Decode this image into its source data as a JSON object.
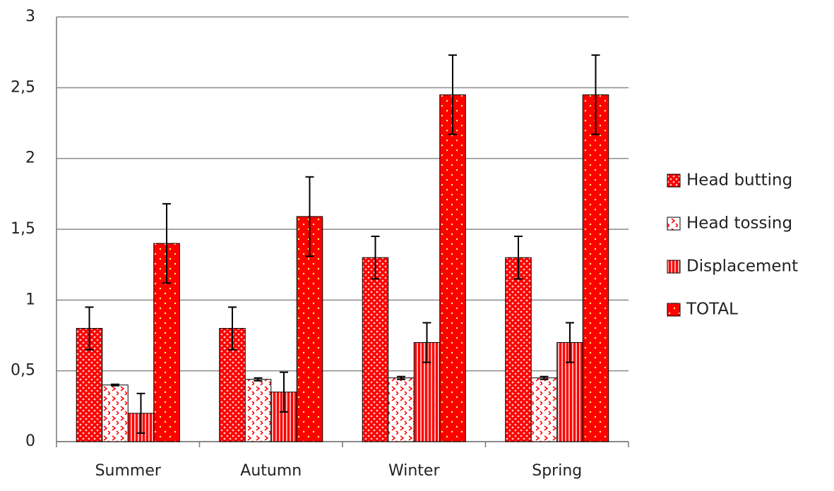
{
  "chart_data": {
    "type": "bar",
    "categories": [
      "Summer",
      "Autumn",
      "Winter",
      "Spring"
    ],
    "series": [
      {
        "name": "Head butting",
        "color": "#ff0000",
        "values": [
          0.8,
          0.8,
          1.3,
          1.3
        ],
        "errors": [
          0.15,
          0.15,
          0.15,
          0.15
        ]
      },
      {
        "name": "Head tossing",
        "color": "#ff0000",
        "values": [
          0.4,
          0.44,
          0.45,
          0.45
        ],
        "errors": [
          0.005,
          0.01,
          0.01,
          0.01
        ]
      },
      {
        "name": "Displacement",
        "color": "#ff0000",
        "values": [
          0.2,
          0.35,
          0.7,
          0.7
        ],
        "errors": [
          0.14,
          0.14,
          0.14,
          0.14
        ]
      },
      {
        "name": "TOTAL",
        "color": "#ff0000",
        "values": [
          1.4,
          1.59,
          2.45,
          2.45
        ],
        "errors": [
          0.28,
          0.28,
          0.28,
          0.28
        ]
      }
    ],
    "ylim": [
      0,
      3
    ],
    "yticks": [
      0,
      {
        "value": 0.5,
        "label": "0,5"
      },
      1,
      {
        "value": 1.5,
        "label": "1,5"
      },
      2,
      {
        "value": 2.5,
        "label": "2,5"
      },
      3
    ],
    "grid": true,
    "legend": "right"
  }
}
